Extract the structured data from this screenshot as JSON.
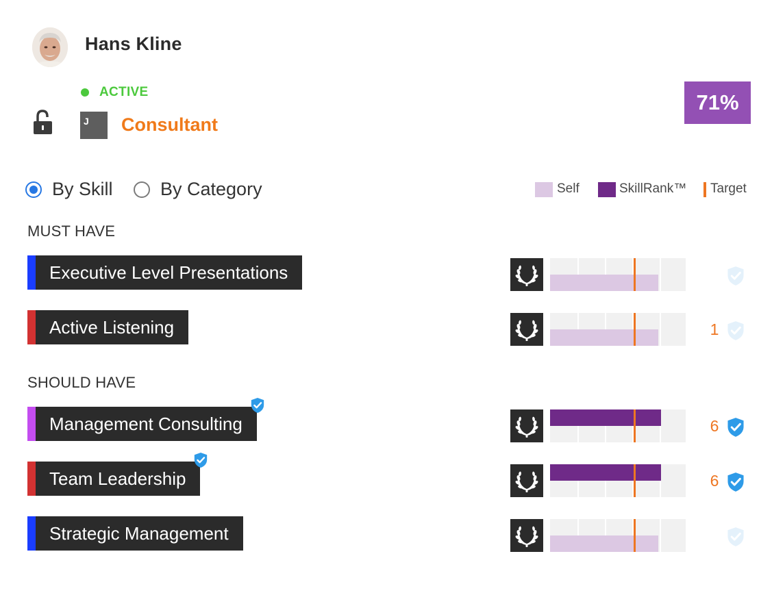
{
  "profile": {
    "name": "Hans Kline",
    "status": "ACTIVE",
    "role": "Consultant",
    "role_logo_letter": "J",
    "match_percent": "71%",
    "lock_icon": "unlocked-padlock-icon"
  },
  "view_toggle": {
    "options": [
      {
        "label": "By Skill",
        "selected": true
      },
      {
        "label": "By Category",
        "selected": false
      }
    ]
  },
  "legend": {
    "self": "Self",
    "skillrank": "SkillRank™",
    "target": "Target"
  },
  "sections": {
    "must_have": "MUST HAVE",
    "should_have": "SHOULD HAVE"
  },
  "skills": [
    {
      "name": "Executive Level Presentations",
      "accent": "#1a3dff",
      "verified": false,
      "skillrank": null,
      "self": 0.8,
      "target": 0.62,
      "count": "",
      "shield_active": false
    },
    {
      "name": "Active Listening",
      "accent": "#d23232",
      "verified": false,
      "skillrank": null,
      "self": 0.8,
      "target": 0.62,
      "count": "1",
      "shield_active": false
    },
    {
      "name": "Management Consulting",
      "accent": "#c44df0",
      "verified": true,
      "skillrank": 0.82,
      "self": null,
      "target": 0.62,
      "count": "6",
      "shield_active": true
    },
    {
      "name": "Team Leadership",
      "accent": "#d23232",
      "verified": true,
      "skillrank": 0.82,
      "self": null,
      "target": 0.62,
      "count": "6",
      "shield_active": true
    },
    {
      "name": "Strategic Management",
      "accent": "#1a3dff",
      "verified": false,
      "skillrank": null,
      "self": 0.8,
      "target": 0.62,
      "count": "",
      "shield_active": false
    }
  ],
  "colors": {
    "active_green": "#4cc93d",
    "role_orange": "#f07a1a",
    "badge_purple": "#9350b4",
    "self_lavender": "#dcc8e3",
    "skillrank_purple": "#6f2a88",
    "target_orange": "#ee7622",
    "check_blue": "#2e9be8",
    "check_faded": "#e4f1fb"
  }
}
